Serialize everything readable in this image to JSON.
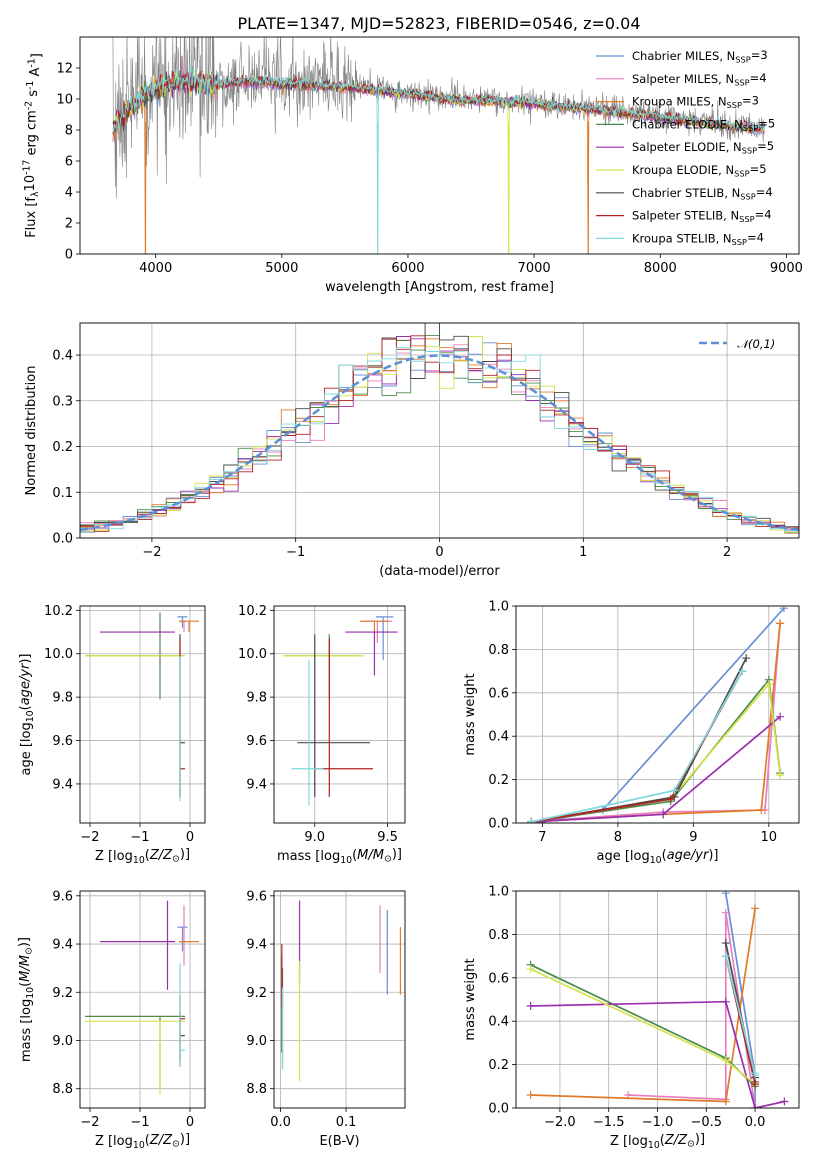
{
  "figure_title": "PLATE=1347, MJD=52823, FIBERID=0546, z=0.04",
  "colors": {
    "Chabrier MILES": "#6a8fd4",
    "Salpeter MILES": "#e77fbf",
    "Kroupa MILES": "#e07b2a",
    "Chabrier ELODIE": "#4c8c4a",
    "Salpeter ELODIE": "#9b2fae",
    "Kroupa ELODIE": "#d4e34a",
    "Chabrier STELIB": "#4a4a4a",
    "Salpeter STELIB": "#b22222",
    "Kroupa STELIB": "#7fd8dc",
    "data": "#7f7f7f",
    "normal": "#5b8fd6"
  },
  "chart_data": [
    {
      "id": "spectrum",
      "type": "line",
      "title": "PLATE=1347, MJD=52823, FIBERID=0546, z=0.04",
      "xlabel": "wavelength [Angstrom, rest frame]",
      "ylabel": "Flux [f$_\\lambda$10$^{-17}$ erg cm$^{-2}$ s$^{-1}$ A$^{-1}$]",
      "xlim": [
        3400,
        9100
      ],
      "ylim": [
        0,
        14
      ],
      "xticks": [
        4000,
        5000,
        6000,
        7000,
        8000,
        9000
      ],
      "yticks": [
        0,
        2,
        4,
        6,
        8,
        10,
        12
      ],
      "grid": false,
      "legend_position": "upper right",
      "legend": [
        "Chabrier MILES, N$_{SSP}$=3",
        "Salpeter MILES, N$_{SSP}$=4",
        "Kroupa MILES, N$_{SSP}$=3",
        "Chabrier ELODIE, N$_{SSP}$=5",
        "Salpeter ELODIE, N$_{SSP}$=5",
        "Kroupa ELODIE, N$_{SSP}$=5",
        "Chabrier STELIB, N$_{SSP}$=4",
        "Salpeter STELIB, N$_{SSP}$=4",
        "Kroupa STELIB, N$_{SSP}$=4"
      ],
      "data_series": {
        "name": "data",
        "x": [
          3650,
          3750,
          3850,
          3950,
          4050,
          4150,
          4250,
          4350,
          4450,
          4550,
          4700,
          4850,
          5000,
          5200,
          5400,
          5600,
          5800,
          6000,
          6200,
          6400,
          6600,
          6800,
          7000,
          7200,
          7400,
          7600,
          7800,
          8000,
          8200,
          8400,
          8600,
          8800
        ],
        "y": [
          8.0,
          9.3,
          10.0,
          10.6,
          11.0,
          11.2,
          11.3,
          11.2,
          11.0,
          11.1,
          11.3,
          11.3,
          11.1,
          11.0,
          10.9,
          10.8,
          10.6,
          10.4,
          10.2,
          10.0,
          10.0,
          9.9,
          9.8,
          9.6,
          9.5,
          9.3,
          9.1,
          8.9,
          8.7,
          8.5,
          8.3,
          8.2
        ]
      },
      "model_series": {
        "x": [
          3650,
          3750,
          3850,
          3950,
          4050,
          4150,
          4250,
          4350,
          4450,
          4550,
          4700,
          4850,
          5000,
          5200,
          5400,
          5600,
          5800,
          6000,
          6200,
          6400,
          6600,
          6800,
          7000,
          7200,
          7400,
          7600,
          7800,
          8000,
          8200,
          8400,
          8600,
          8800
        ],
        "y": [
          7.8,
          9.0,
          9.8,
          10.4,
          10.8,
          11.0,
          11.1,
          11.1,
          10.9,
          11.0,
          11.1,
          11.1,
          11.0,
          10.9,
          10.8,
          10.7,
          10.5,
          10.3,
          10.1,
          9.9,
          9.9,
          9.8,
          9.7,
          9.5,
          9.4,
          9.2,
          9.0,
          8.8,
          8.6,
          8.4,
          8.2,
          8.1
        ]
      },
      "model_dropouts": [
        {
          "series": "Kroupa MILES",
          "x": 3920
        },
        {
          "series": "Kroupa STELIB",
          "x": 5760
        },
        {
          "series": "Kroupa ELODIE",
          "x": 6800
        },
        {
          "series": "Kroupa MILES",
          "x": 7430
        }
      ]
    },
    {
      "id": "residuals",
      "type": "histogram",
      "xlabel": "(data-model)/error",
      "ylabel": "Normed distribution",
      "xlim": [
        -2.5,
        2.5
      ],
      "ylim": [
        0,
        0.47
      ],
      "xticks": [
        -2,
        -1,
        0,
        1,
        2
      ],
      "yticks": [
        0.0,
        0.1,
        0.2,
        0.3,
        0.4
      ],
      "grid": true,
      "legend_position": "upper right",
      "legend": [
        "$\\mathcal{N}(0,1)$"
      ],
      "bin_width": 0.1,
      "normal_curve": {
        "mean": 0,
        "sigma": 1,
        "style": "dashed"
      }
    },
    {
      "id": "Z-age",
      "type": "scatter",
      "xlabel": "Z [log$_{10}$($Z/Z_\\odot$)]",
      "ylabel": "age  [log$_{10}$($age/yr$)]",
      "xlim": [
        -2.2,
        0.3
      ],
      "ylim": [
        9.22,
        10.22
      ],
      "xticks": [
        -2,
        -1,
        0
      ],
      "yticks": [
        9.4,
        9.6,
        9.8,
        10.0,
        10.2
      ],
      "grid": true,
      "points": [
        {
          "series": "Chabrier MILES",
          "x": -0.15,
          "y": 10.17,
          "xerr": [
            0.1,
            0.1
          ],
          "yerr": [
            0.05,
            0.0
          ]
        },
        {
          "series": "Salpeter MILES",
          "x": -0.12,
          "y": 10.15,
          "xerr": [
            0.1,
            0.05
          ],
          "yerr": [
            0.05,
            0.0
          ]
        },
        {
          "series": "Kroupa MILES",
          "x": -0.02,
          "y": 10.15,
          "xerr": [
            0.2,
            0.2
          ],
          "yerr": [
            0.05,
            0.0
          ]
        },
        {
          "series": "Chabrier ELODIE",
          "x": -0.6,
          "y": 9.99,
          "xerr": [
            1.5,
            0.5
          ],
          "yerr": [
            0.2,
            0.2
          ]
        },
        {
          "series": "Salpeter ELODIE",
          "x": -0.45,
          "y": 10.1,
          "xerr": [
            1.35,
            0.15
          ],
          "yerr": [
            0.0,
            0.0
          ]
        },
        {
          "series": "Kroupa ELODIE",
          "x": -0.6,
          "y": 9.99,
          "xerr": [
            1.5,
            0.5
          ],
          "yerr": [
            0.0,
            0.0
          ]
        },
        {
          "series": "Chabrier STELIB",
          "x": -0.2,
          "y": 9.59,
          "xerr": [
            0.0,
            0.1
          ],
          "yerr": [
            0.25,
            0.5
          ]
        },
        {
          "series": "Salpeter STELIB",
          "x": -0.2,
          "y": 9.47,
          "xerr": [
            0.0,
            0.1
          ],
          "yerr": [
            0.13,
            0.6
          ]
        },
        {
          "series": "Kroupa STELIB",
          "x": -0.2,
          "y": 9.99,
          "xerr": [
            0.0,
            0.0
          ],
          "yerr": [
            0.67,
            0.0
          ]
        }
      ]
    },
    {
      "id": "mass-age",
      "type": "scatter",
      "xlabel": "mass [log$_{10}$($M/M_\\odot$)]",
      "ylabel": "",
      "xlim": [
        8.72,
        9.62
      ],
      "ylim": [
        9.22,
        10.22
      ],
      "xticks": [
        9.0,
        9.5
      ],
      "yticks": [
        9.4,
        9.6,
        9.8,
        10.0,
        10.2
      ],
      "grid": true,
      "points": [
        {
          "series": "Chabrier MILES",
          "x": 9.47,
          "y": 10.17,
          "xerr": [
            0.05,
            0.07
          ],
          "yerr": [
            0.2,
            0.0
          ]
        },
        {
          "series": "Salpeter MILES",
          "x": 9.43,
          "y": 10.15,
          "xerr": [
            0.1,
            0.1
          ],
          "yerr": [
            0.1,
            0.0
          ]
        },
        {
          "series": "Kroupa MILES",
          "x": 9.41,
          "y": 10.15,
          "xerr": [
            0.1,
            0.1
          ],
          "yerr": [
            0.05,
            0.0
          ]
        },
        {
          "series": "Chabrier ELODIE",
          "x": 9.1,
          "y": 9.99,
          "xerr": [
            0.3,
            0.2
          ],
          "yerr": [
            0.2,
            0.1
          ]
        },
        {
          "series": "Salpeter ELODIE",
          "x": 9.41,
          "y": 10.1,
          "xerr": [
            0.2,
            0.16
          ],
          "yerr": [
            0.2,
            0.0
          ]
        },
        {
          "series": "Kroupa ELODIE",
          "x": 9.08,
          "y": 9.99,
          "xerr": [
            0.3,
            0.26
          ],
          "yerr": [
            0.0,
            0.0
          ]
        },
        {
          "series": "Chabrier STELIB",
          "x": 9.0,
          "y": 9.59,
          "xerr": [
            0.12,
            0.38
          ],
          "yerr": [
            0.25,
            0.5
          ]
        },
        {
          "series": "Salpeter STELIB",
          "x": 9.1,
          "y": 9.47,
          "xerr": [
            0.1,
            0.3
          ],
          "yerr": [
            0.13,
            0.6
          ]
        },
        {
          "series": "Kroupa STELIB",
          "x": 8.96,
          "y": 9.47,
          "xerr": [
            0.12,
            0.1
          ],
          "yerr": [
            0.17,
            0.5
          ]
        }
      ]
    },
    {
      "id": "age-weight",
      "type": "line",
      "xlabel": "age  [log$_{10}$($age/yr$)]",
      "ylabel": "mass weight",
      "xlim": [
        6.65,
        10.4
      ],
      "ylim": [
        0,
        1
      ],
      "xticks": [
        7,
        8,
        9,
        10
      ],
      "yticks": [
        0.0,
        0.2,
        0.4,
        0.6,
        0.8,
        1.0
      ],
      "grid": true,
      "series": [
        {
          "series": "Chabrier MILES",
          "x": [
            7.0,
            7.8,
            10.2
          ],
          "y": [
            0.005,
            0.06,
            0.99
          ]
        },
        {
          "series": "Salpeter MILES",
          "x": [
            6.85,
            8.6,
            9.95,
            10.15
          ],
          "y": [
            0.005,
            0.05,
            0.06,
            0.92
          ]
        },
        {
          "series": "Kroupa MILES",
          "x": [
            6.85,
            8.6,
            9.9,
            10.15
          ],
          "y": [
            0.005,
            0.04,
            0.06,
            0.92
          ]
        },
        {
          "series": "Chabrier ELODIE",
          "x": [
            6.85,
            8.7,
            10.0,
            10.15
          ],
          "y": [
            0.005,
            0.1,
            0.66,
            0.23
          ]
        },
        {
          "series": "Salpeter ELODIE",
          "x": [
            6.85,
            8.6,
            10.15
          ],
          "y": [
            0.005,
            0.04,
            0.49
          ]
        },
        {
          "series": "Kroupa ELODIE",
          "x": [
            6.85,
            8.7,
            10.0,
            10.15
          ],
          "y": [
            0.005,
            0.11,
            0.64,
            0.22
          ]
        },
        {
          "series": "Chabrier STELIB",
          "x": [
            6.85,
            8.75,
            9.7
          ],
          "y": [
            0.005,
            0.12,
            0.76
          ]
        },
        {
          "series": "Salpeter STELIB",
          "x": [
            6.85,
            8.7,
            9.65
          ],
          "y": [
            0.005,
            0.11,
            0.7
          ]
        },
        {
          "series": "Kroupa STELIB",
          "x": [
            6.85,
            8.75,
            9.65
          ],
          "y": [
            0.005,
            0.15,
            0.7
          ]
        }
      ]
    },
    {
      "id": "Z-mass",
      "type": "scatter",
      "xlabel": "Z [log$_{10}$($Z/Z_\\odot$)]",
      "ylabel": "mass [log$_{10}$($M/M_\\odot$)]",
      "xlim": [
        -2.2,
        0.3
      ],
      "ylim": [
        8.72,
        9.62
      ],
      "xticks": [
        -2,
        -1,
        0
      ],
      "yticks": [
        8.8,
        9.0,
        9.2,
        9.4,
        9.6
      ],
      "grid": true,
      "points": [
        {
          "series": "Chabrier MILES",
          "x": -0.15,
          "y": 9.47,
          "xerr": [
            0.1,
            0.1
          ],
          "yerr": [
            0.1,
            0.0
          ]
        },
        {
          "series": "Salpeter MILES",
          "x": -0.12,
          "y": 9.41,
          "xerr": [
            0.1,
            0.05
          ],
          "yerr": [
            0.1,
            0.15
          ]
        },
        {
          "series": "Kroupa MILES",
          "x": -0.02,
          "y": 9.41,
          "xerr": [
            0.2,
            0.2
          ],
          "yerr": [
            0.0,
            0.0
          ]
        },
        {
          "series": "Chabrier ELODIE",
          "x": -0.6,
          "y": 9.1,
          "xerr": [
            1.5,
            0.5
          ],
          "yerr": [
            0.3,
            0.0
          ]
        },
        {
          "series": "Salpeter ELODIE",
          "x": -0.45,
          "y": 9.41,
          "xerr": [
            1.35,
            0.15
          ],
          "yerr": [
            0.2,
            0.17
          ]
        },
        {
          "series": "Kroupa ELODIE",
          "x": -0.6,
          "y": 9.08,
          "xerr": [
            1.5,
            0.5
          ],
          "yerr": [
            0.3,
            0.0
          ]
        },
        {
          "series": "Chabrier STELIB",
          "x": -0.2,
          "y": 9.02,
          "xerr": [
            0.0,
            0.1
          ],
          "yerr": [
            0.1,
            0.1
          ]
        },
        {
          "series": "Salpeter STELIB",
          "x": -0.2,
          "y": 9.09,
          "xerr": [
            0.0,
            0.1
          ],
          "yerr": [
            0.2,
            0.1
          ]
        },
        {
          "series": "Kroupa STELIB",
          "x": -0.2,
          "y": 8.96,
          "xerr": [
            0.0,
            0.1
          ],
          "yerr": [
            0.07,
            0.36
          ]
        }
      ]
    },
    {
      "id": "ebv-mass",
      "type": "scatter",
      "xlabel": "E(B-V)",
      "ylabel": "",
      "xlim": [
        -0.01,
        0.19
      ],
      "ylim": [
        8.72,
        9.62
      ],
      "xticks": [
        0.0,
        0.1
      ],
      "yticks": [
        8.8,
        9.0,
        9.2,
        9.4,
        9.6
      ],
      "grid": true,
      "points": [
        {
          "series": "Chabrier MILES",
          "x": 0.163,
          "y": 9.38,
          "xerr": [
            0,
            0
          ],
          "yerr": [
            0.19,
            0.16
          ]
        },
        {
          "series": "Salpeter MILES",
          "x": 0.152,
          "y": 9.42,
          "xerr": [
            0,
            0
          ],
          "yerr": [
            0.14,
            0.14
          ]
        },
        {
          "series": "Kroupa MILES",
          "x": 0.183,
          "y": 9.33,
          "xerr": [
            0,
            0
          ],
          "yerr": [
            0.14,
            0.14
          ]
        },
        {
          "series": "Chabrier ELODIE",
          "x": 0.003,
          "y": 9.1,
          "xerr": [
            0,
            0
          ],
          "yerr": [
            0.2,
            0.2
          ]
        },
        {
          "series": "Salpeter ELODIE",
          "x": 0.029,
          "y": 9.41,
          "xerr": [
            0,
            0
          ],
          "yerr": [
            0.17,
            0.17
          ]
        },
        {
          "series": "Kroupa ELODIE",
          "x": 0.029,
          "y": 9.08,
          "xerr": [
            0,
            0
          ],
          "yerr": [
            0.25,
            0.25
          ]
        },
        {
          "series": "Chabrier STELIB",
          "x": 0.002,
          "y": 9.15,
          "xerr": [
            0,
            0
          ],
          "yerr": [
            0.2,
            0.2
          ]
        },
        {
          "series": "Salpeter STELIB",
          "x": 0.002,
          "y": 9.27,
          "xerr": [
            0,
            0
          ],
          "yerr": [
            0.13,
            0.13
          ]
        },
        {
          "series": "Kroupa STELIB",
          "x": 0.003,
          "y": 9.05,
          "xerr": [
            0,
            0
          ],
          "yerr": [
            0.17,
            0.17
          ]
        }
      ]
    },
    {
      "id": "Z-weight",
      "type": "line",
      "xlabel": "Z [log$_{10}$($Z/Z_\\odot$)]",
      "ylabel": "mass weight",
      "xlim": [
        -2.45,
        0.45
      ],
      "ylim": [
        0,
        1
      ],
      "xticks": [
        -2.0,
        -1.5,
        -1.0,
        -0.5,
        0.0
      ],
      "yticks": [
        0.0,
        0.2,
        0.4,
        0.6,
        0.8,
        1.0
      ],
      "grid": true,
      "series": [
        {
          "series": "Chabrier MILES",
          "x": [
            -0.3,
            0.0,
            0.0
          ],
          "y": [
            0.99,
            0.15,
            0.0
          ]
        },
        {
          "series": "Salpeter MILES",
          "x": [
            -1.3,
            -0.3,
            -0.3,
            0.0
          ],
          "y": [
            0.06,
            0.04,
            0.9,
            0.0
          ]
        },
        {
          "series": "Kroupa MILES",
          "x": [
            -2.3,
            -0.3,
            0.0
          ],
          "y": [
            0.06,
            0.03,
            0.92
          ]
        },
        {
          "series": "Chabrier ELODIE",
          "x": [
            -2.3,
            -0.3,
            0.0
          ],
          "y": [
            0.66,
            0.23,
            0.1
          ]
        },
        {
          "series": "Salpeter ELODIE",
          "x": [
            -2.3,
            -0.3,
            0.0,
            0.3
          ],
          "y": [
            0.47,
            0.49,
            0.0,
            0.03
          ]
        },
        {
          "series": "Kroupa ELODIE",
          "x": [
            -2.3,
            -0.3,
            0.0
          ],
          "y": [
            0.64,
            0.22,
            0.11
          ]
        },
        {
          "series": "Chabrier STELIB",
          "x": [
            -0.3,
            0.0,
            0.0
          ],
          "y": [
            0.76,
            0.12,
            0.14
          ]
        },
        {
          "series": "Salpeter STELIB",
          "x": [
            -0.3,
            0.0
          ],
          "y": [
            0.7,
            0.11
          ]
        },
        {
          "series": "Kroupa STELIB",
          "x": [
            -0.3,
            0.0,
            0.0
          ],
          "y": [
            0.7,
            0.15,
            0.16
          ]
        }
      ]
    }
  ]
}
